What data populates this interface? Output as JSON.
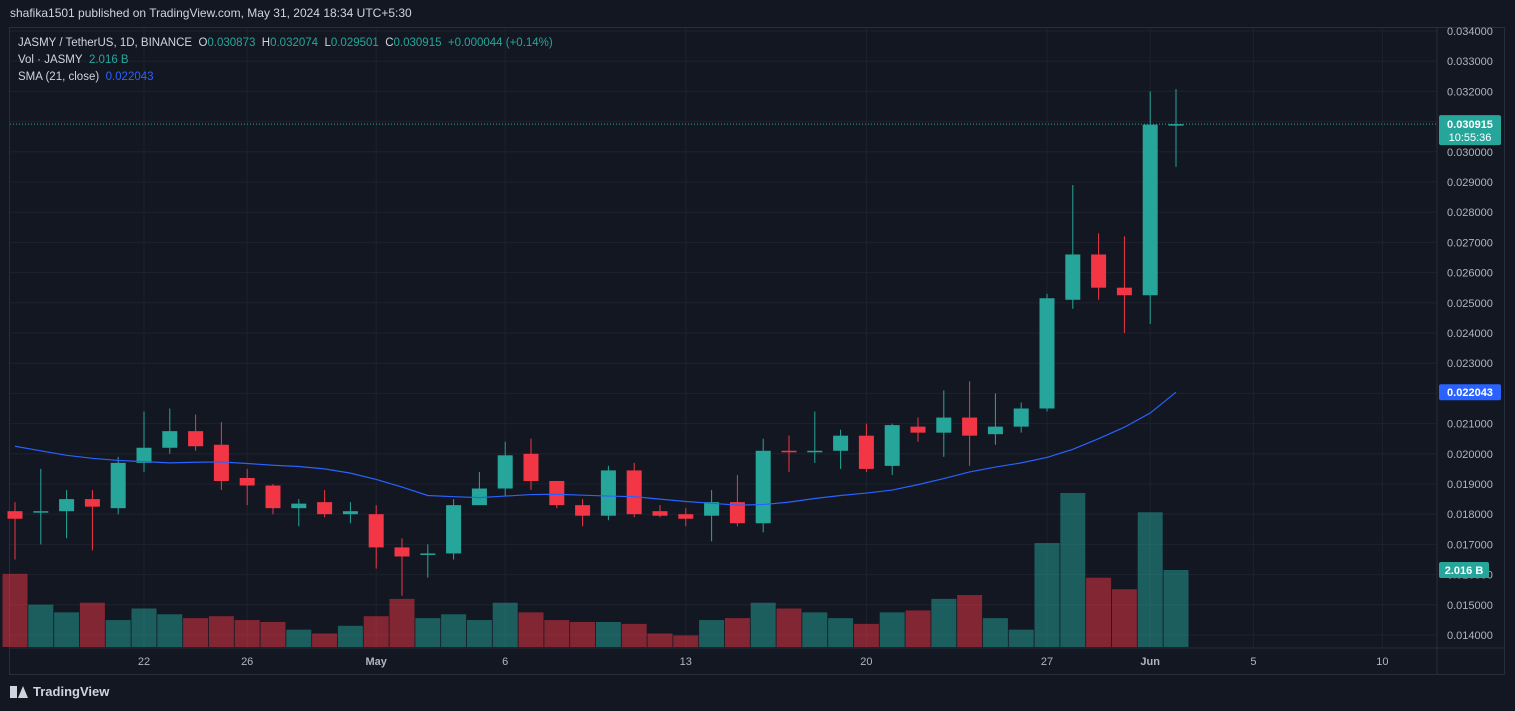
{
  "header": {
    "published": "shafika1501 published on TradingView.com, May 31, 2024 18:34 UTC+5:30"
  },
  "legend": {
    "symbol": "JASMY / TetherUS, 1D, BINANCE",
    "o_label": "O",
    "o": "0.030873",
    "h_label": "H",
    "h": "0.032074",
    "l_label": "L",
    "l": "0.029501",
    "c_label": "C",
    "c": "0.030915",
    "change": "+0.000044 (+0.14%)",
    "vol_label": "Vol · JASMY",
    "vol": "2.016 B",
    "sma_label": "SMA (21, close)",
    "sma": "0.022043"
  },
  "price_badge": {
    "price": "0.030915",
    "countdown": "10:55:36"
  },
  "sma_badge": "0.022043",
  "vol_badge": "2.016 B",
  "footer": {
    "brand": "TradingView"
  },
  "colors": {
    "up": "#26a69a",
    "down": "#f23645",
    "sma": "#2962ff",
    "bg": "#131722",
    "grid": "#1e222d",
    "text": "#d1d4dc"
  },
  "chart_data": {
    "type": "candlestick",
    "ylim": [
      0.0135,
      0.0342
    ],
    "yticks": [
      "0.034000",
      "0.033000",
      "0.032000",
      "0.031000",
      "0.030000",
      "0.029000",
      "0.028000",
      "0.027000",
      "0.026000",
      "0.025000",
      "0.024000",
      "0.023000",
      "0.022000",
      "0.021000",
      "0.020000",
      "0.019000",
      "0.018000",
      "0.017000",
      "0.016000",
      "0.015000",
      "0.014000"
    ],
    "xticks": [
      {
        "label": "22",
        "day": 5
      },
      {
        "label": "26",
        "day": 9
      },
      {
        "label": "May",
        "day": 14
      },
      {
        "label": "6",
        "day": 19
      },
      {
        "label": "13",
        "day": 26
      },
      {
        "label": "20",
        "day": 33
      },
      {
        "label": "27",
        "day": 40
      },
      {
        "label": "Jun",
        "day": 44
      },
      {
        "label": "5",
        "day": 48
      },
      {
        "label": "10",
        "day": 53
      }
    ],
    "candles": [
      {
        "o": 0.0181,
        "h": 0.0184,
        "l": 0.0165,
        "c": 0.01785,
        "v": 19
      },
      {
        "o": 0.0181,
        "h": 0.0195,
        "l": 0.017,
        "c": 0.0181,
        "v": 11
      },
      {
        "o": 0.0181,
        "h": 0.0188,
        "l": 0.0172,
        "c": 0.0185,
        "v": 9
      },
      {
        "o": 0.0185,
        "h": 0.0188,
        "l": 0.0168,
        "c": 0.01825,
        "v": 11.5
      },
      {
        "o": 0.0182,
        "h": 0.0199,
        "l": 0.018,
        "c": 0.0197,
        "v": 7
      },
      {
        "o": 0.0197,
        "h": 0.0214,
        "l": 0.0194,
        "c": 0.0202,
        "v": 10
      },
      {
        "o": 0.0202,
        "h": 0.0215,
        "l": 0.02,
        "c": 0.02075,
        "v": 8.5
      },
      {
        "o": 0.02075,
        "h": 0.0213,
        "l": 0.0201,
        "c": 0.02025,
        "v": 7.5
      },
      {
        "o": 0.0203,
        "h": 0.02105,
        "l": 0.0188,
        "c": 0.0191,
        "v": 8
      },
      {
        "o": 0.0192,
        "h": 0.0195,
        "l": 0.0183,
        "c": 0.01895,
        "v": 7
      },
      {
        "o": 0.01895,
        "h": 0.019,
        "l": 0.018,
        "c": 0.0182,
        "v": 6.5
      },
      {
        "o": 0.0182,
        "h": 0.0185,
        "l": 0.0176,
        "c": 0.01835,
        "v": 4.5
      },
      {
        "o": 0.0184,
        "h": 0.0188,
        "l": 0.0179,
        "c": 0.018,
        "v": 3.5
      },
      {
        "o": 0.018,
        "h": 0.0184,
        "l": 0.0177,
        "c": 0.0181,
        "v": 5.5
      },
      {
        "o": 0.018,
        "h": 0.0183,
        "l": 0.0162,
        "c": 0.0169,
        "v": 8
      },
      {
        "o": 0.0169,
        "h": 0.0172,
        "l": 0.0153,
        "c": 0.0166,
        "v": 12.5
      },
      {
        "o": 0.0167,
        "h": 0.017,
        "l": 0.0159,
        "c": 0.0167,
        "v": 7.5
      },
      {
        "o": 0.0167,
        "h": 0.0185,
        "l": 0.0165,
        "c": 0.0183,
        "v": 8.5
      },
      {
        "o": 0.0183,
        "h": 0.0194,
        "l": 0.0183,
        "c": 0.01885,
        "v": 7
      },
      {
        "o": 0.01885,
        "h": 0.0204,
        "l": 0.0186,
        "c": 0.01995,
        "v": 11.5
      },
      {
        "o": 0.02,
        "h": 0.0205,
        "l": 0.0188,
        "c": 0.0191,
        "v": 9
      },
      {
        "o": 0.0191,
        "h": 0.0191,
        "l": 0.0182,
        "c": 0.0183,
        "v": 7
      },
      {
        "o": 0.0183,
        "h": 0.0185,
        "l": 0.0176,
        "c": 0.01795,
        "v": 6.5
      },
      {
        "o": 0.01795,
        "h": 0.0196,
        "l": 0.0178,
        "c": 0.01945,
        "v": 6.5
      },
      {
        "o": 0.01945,
        "h": 0.0197,
        "l": 0.0179,
        "c": 0.018,
        "v": 6
      },
      {
        "o": 0.0181,
        "h": 0.0183,
        "l": 0.0179,
        "c": 0.01795,
        "v": 3.5
      },
      {
        "o": 0.018,
        "h": 0.0182,
        "l": 0.0176,
        "c": 0.01785,
        "v": 3
      },
      {
        "o": 0.01795,
        "h": 0.0188,
        "l": 0.0171,
        "c": 0.0184,
        "v": 7
      },
      {
        "o": 0.0184,
        "h": 0.0193,
        "l": 0.0176,
        "c": 0.0177,
        "v": 7.5
      },
      {
        "o": 0.0177,
        "h": 0.0205,
        "l": 0.0174,
        "c": 0.0201,
        "v": 11.5
      },
      {
        "o": 0.0201,
        "h": 0.0206,
        "l": 0.0194,
        "c": 0.02005,
        "v": 10
      },
      {
        "o": 0.02005,
        "h": 0.0214,
        "l": 0.0197,
        "c": 0.0201,
        "v": 9
      },
      {
        "o": 0.0201,
        "h": 0.0208,
        "l": 0.0195,
        "c": 0.0206,
        "v": 7.5
      },
      {
        "o": 0.0206,
        "h": 0.021,
        "l": 0.0194,
        "c": 0.0195,
        "v": 6
      },
      {
        "o": 0.0196,
        "h": 0.021,
        "l": 0.0193,
        "c": 0.02095,
        "v": 9
      },
      {
        "o": 0.0209,
        "h": 0.0212,
        "l": 0.0204,
        "c": 0.0207,
        "v": 9.5
      },
      {
        "o": 0.0207,
        "h": 0.0221,
        "l": 0.0199,
        "c": 0.0212,
        "v": 12.5
      },
      {
        "o": 0.0212,
        "h": 0.0224,
        "l": 0.0196,
        "c": 0.0206,
        "v": 13.5
      },
      {
        "o": 0.02065,
        "h": 0.022,
        "l": 0.0203,
        "c": 0.0209,
        "v": 7.5
      },
      {
        "o": 0.0209,
        "h": 0.0217,
        "l": 0.0207,
        "c": 0.0215,
        "v": 4.5
      },
      {
        "o": 0.0215,
        "h": 0.0253,
        "l": 0.0214,
        "c": 0.02515,
        "v": 27
      },
      {
        "o": 0.0251,
        "h": 0.0289,
        "l": 0.0248,
        "c": 0.0266,
        "v": 40
      },
      {
        "o": 0.0266,
        "h": 0.0273,
        "l": 0.0251,
        "c": 0.0255,
        "v": 18
      },
      {
        "o": 0.0255,
        "h": 0.0272,
        "l": 0.024,
        "c": 0.02525,
        "v": 15
      },
      {
        "o": 0.02525,
        "h": 0.032,
        "l": 0.0243,
        "c": 0.0309,
        "v": 35
      },
      {
        "o": 0.030873,
        "h": 0.032074,
        "l": 0.029501,
        "c": 0.030915,
        "v": 20
      }
    ],
    "sma": [
      0.02025,
      0.0201,
      0.01995,
      0.01985,
      0.01978,
      0.01974,
      0.0197,
      0.01972,
      0.01973,
      0.01968,
      0.01962,
      0.01958,
      0.0195,
      0.01936,
      0.01915,
      0.0189,
      0.01862,
      0.01858,
      0.01855,
      0.0186,
      0.01865,
      0.01866,
      0.01863,
      0.0186,
      0.01858,
      0.0185,
      0.01842,
      0.01836,
      0.0183,
      0.01832,
      0.0184,
      0.01852,
      0.01862,
      0.0187,
      0.0188,
      0.01898,
      0.01918,
      0.0194,
      0.01956,
      0.0197,
      0.01988,
      0.02015,
      0.0205,
      0.02088,
      0.02135,
      0.02204
    ]
  }
}
